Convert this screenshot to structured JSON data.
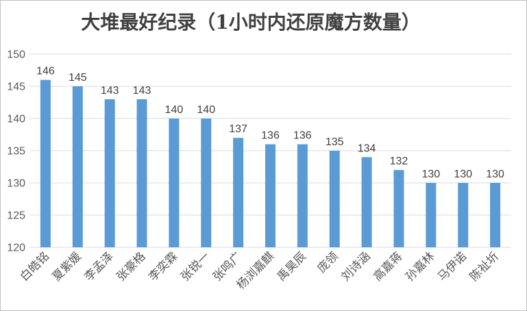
{
  "chart_data": {
    "type": "bar",
    "title": "大堆最好纪录（1小时内还原魔方数量）",
    "categories": [
      "白皓铭",
      "夏紫媛",
      "李孟泽",
      "张豪格",
      "李奕霖",
      "张锐一",
      "张鸣广",
      "杨浏嘉麒",
      "禹昊辰",
      "庞领",
      "刘诗涵",
      "高嘉蒋",
      "孙嘉林",
      "马伊诺",
      "陈祉圻"
    ],
    "values": [
      146,
      145,
      143,
      143,
      140,
      140,
      137,
      136,
      136,
      135,
      134,
      132,
      130,
      130,
      130
    ],
    "yticks": [
      120,
      125,
      130,
      135,
      140,
      145,
      150
    ],
    "ylim": [
      120,
      150
    ],
    "grid": true,
    "legend": "none",
    "bar_color": "#5b9bd5"
  }
}
